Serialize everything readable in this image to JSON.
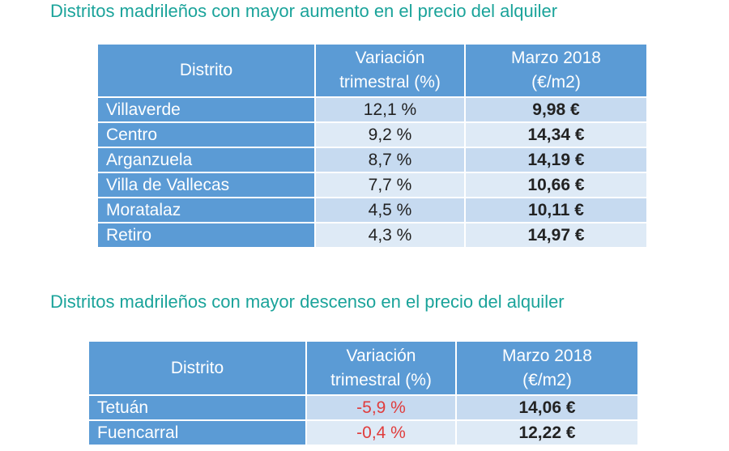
{
  "sections": [
    {
      "title": "Distritos madrileños con mayor aumento en el precio del alquiler",
      "table": {
        "header": [
          "Distrito",
          "Variación trimestral (%)",
          "Marzo 2018 (€/m2)"
        ],
        "rows": [
          [
            "Villaverde",
            "12,1 %",
            "9,98 €"
          ],
          [
            "Centro",
            "9,2 %",
            "14,34 €"
          ],
          [
            "Arganzuela",
            "8,7 %",
            "14,19 €"
          ],
          [
            "Villa de Vallecas",
            "7,7 %",
            "10,66 €"
          ],
          [
            "Moratalaz",
            "4,5 %",
            "10,11 €"
          ],
          [
            "Retiro",
            "4,3 %",
            "14,97 €"
          ]
        ]
      }
    },
    {
      "title": "Distritos madrileños con mayor descenso en el precio del alquiler",
      "table": {
        "header": [
          "Distrito",
          "Variación trimestral (%)",
          "Marzo 2018 (€/m2)"
        ],
        "rows": [
          [
            "Tetuán",
            "-5,9 %",
            "14,06 €"
          ],
          [
            "Fuencarral",
            "-0,4 %",
            "12,22 €"
          ]
        ]
      }
    }
  ]
}
